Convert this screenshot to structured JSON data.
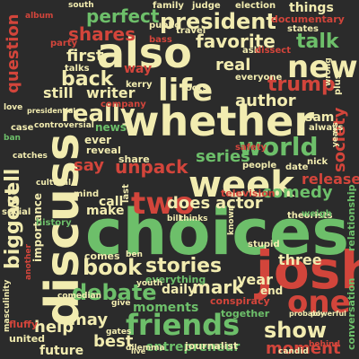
{
  "palette": {
    "background": "#2b2b2b",
    "cream": "#f2ecb0",
    "green": "#6dbf6a",
    "red": "#d2453b",
    "dark_green": "#2e8b57",
    "grey": "#9a9a9a"
  },
  "words": [
    {
      "text": "choices",
      "color": "#6dbf6a"
    },
    {
      "text": "whether",
      "color": "#f2ecb0"
    },
    {
      "text": "discuss",
      "color": "#f2ecb0"
    },
    {
      "text": "also",
      "color": "#f2ecb0"
    },
    {
      "text": "josh",
      "color": "#d2453b"
    },
    {
      "text": "week",
      "color": "#f2ecb0"
    },
    {
      "text": "friends",
      "color": "#6dbf6a"
    },
    {
      "text": "two",
      "color": "#d2453b"
    },
    {
      "text": "new",
      "color": "#f2ecb0"
    },
    {
      "text": "life",
      "color": "#f2ecb0"
    },
    {
      "text": "one",
      "color": "#d2453b"
    },
    {
      "text": "world",
      "color": "#6dbf6a"
    },
    {
      "text": "really",
      "color": "#f2ecb0"
    },
    {
      "text": "president",
      "color": "#f2ecb0"
    },
    {
      "text": "trump",
      "color": "#d2453b"
    },
    {
      "text": "debate",
      "color": "#6dbf6a"
    },
    {
      "text": "book",
      "color": "#f2ecb0"
    },
    {
      "text": "stories",
      "color": "#f2ecb0"
    },
    {
      "text": "show",
      "color": "#f2ecb0"
    },
    {
      "text": "perfect",
      "color": "#6dbf6a"
    },
    {
      "text": "shares",
      "color": "#d2453b"
    },
    {
      "text": "back",
      "color": "#f2ecb0"
    },
    {
      "text": "talk",
      "color": "#6dbf6a"
    },
    {
      "text": "favorite",
      "color": "#f2ecb0"
    },
    {
      "text": "first",
      "color": "#f2ecb0"
    },
    {
      "text": "unpack",
      "color": "#d2453b"
    },
    {
      "text": "series",
      "color": "#6dbf6a"
    },
    {
      "text": "biggest",
      "color": "#f2ecb0"
    },
    {
      "text": "well",
      "color": "#f2ecb0"
    },
    {
      "text": "mark",
      "color": "#f2ecb0"
    },
    {
      "text": "moment",
      "color": "#d2453b"
    },
    {
      "text": "society",
      "color": "#d2453b"
    },
    {
      "text": "comedy",
      "color": "#6dbf6a"
    },
    {
      "text": "question",
      "color": "#d2453b"
    },
    {
      "text": "author",
      "color": "#f2ecb0"
    },
    {
      "text": "real",
      "color": "#f2ecb0"
    },
    {
      "text": "does",
      "color": "#f2ecb0"
    },
    {
      "text": "actor",
      "color": "#f2ecb0"
    },
    {
      "text": "say",
      "color": "#d2453b"
    },
    {
      "text": "best",
      "color": "#f2ecb0"
    },
    {
      "text": "help",
      "color": "#f2ecb0"
    },
    {
      "text": "may",
      "color": "#f2ecb0"
    },
    {
      "text": "year",
      "color": "#f2ecb0"
    },
    {
      "text": "three",
      "color": "#f2ecb0"
    },
    {
      "text": "moments",
      "color": "#6dbf6a"
    },
    {
      "text": "daily",
      "color": "#f2ecb0"
    },
    {
      "text": "entrepreneur",
      "color": "#6dbf6a"
    },
    {
      "text": "release",
      "color": "#d2453b"
    },
    {
      "text": "writer",
      "color": "#f2ecb0"
    },
    {
      "text": "still",
      "color": "#f2ecb0"
    },
    {
      "text": "make",
      "color": "#f2ecb0"
    },
    {
      "text": "call",
      "color": "#f2ecb0"
    },
    {
      "text": "way",
      "color": "#d2453b"
    },
    {
      "text": "things",
      "color": "#f2ecb0"
    },
    {
      "text": "sam",
      "color": "#f2ecb0"
    },
    {
      "text": "future",
      "color": "#f2ecb0"
    },
    {
      "text": "importance",
      "color": "#f2ecb0"
    },
    {
      "text": "end",
      "color": "#f2ecb0"
    },
    {
      "text": "ever",
      "color": "#f2ecb0"
    },
    {
      "text": "news",
      "color": "#6dbf6a"
    },
    {
      "text": "documentary",
      "color": "#d2453b"
    },
    {
      "text": "conspiracy",
      "color": "#d2453b"
    },
    {
      "text": "television",
      "color": "#d2453b"
    },
    {
      "text": "journalist",
      "color": "#f2ecb0"
    },
    {
      "text": "conversation",
      "color": "#6dbf6a"
    },
    {
      "text": "relationship",
      "color": "#6dbf6a"
    },
    {
      "text": "together",
      "color": "#6dbf6a"
    },
    {
      "text": "reveal",
      "color": "#f2ecb0"
    },
    {
      "text": "share",
      "color": "#f2ecb0"
    },
    {
      "text": "comes",
      "color": "#f2ecb0"
    },
    {
      "text": "everything",
      "color": "#6dbf6a"
    },
    {
      "text": "united",
      "color": "#f2ecb0"
    },
    {
      "text": "fluffy",
      "color": "#d2453b"
    },
    {
      "text": "talks",
      "color": "#f2ecb0"
    },
    {
      "text": "party",
      "color": "#d2453b"
    },
    {
      "text": "plus",
      "color": "#f2ecb0"
    },
    {
      "text": "always",
      "color": "#f2ecb0"
    },
    {
      "text": "people",
      "color": "#f2ecb0"
    },
    {
      "text": "theorists",
      "color": "#f2ecb0"
    },
    {
      "text": "roots",
      "color": "#f2ecb0"
    },
    {
      "text": "company",
      "color": "#d2453b"
    },
    {
      "text": "election",
      "color": "#f2ecb0"
    },
    {
      "text": "family",
      "color": "#f2ecb0"
    },
    {
      "text": "judge",
      "color": "#f2ecb0"
    },
    {
      "text": "states",
      "color": "#f2ecb0"
    },
    {
      "text": "ask",
      "color": "#f2ecb0"
    },
    {
      "text": "bass",
      "color": "#d2453b"
    },
    {
      "text": "public",
      "color": "#f2ecb0"
    },
    {
      "text": "travel",
      "color": "#f2ecb0"
    },
    {
      "text": "everyone",
      "color": "#f2ecb0"
    },
    {
      "text": "dissect",
      "color": "#d2453b"
    },
    {
      "text": "kerry",
      "color": "#f2ecb0"
    },
    {
      "text": "safety",
      "color": "#d2453b"
    },
    {
      "text": "nick",
      "color": "#f2ecb0"
    },
    {
      "text": "date",
      "color": "#f2ecb0"
    },
    {
      "text": "weigh",
      "color": "#6dbf6a"
    },
    {
      "text": "stupid",
      "color": "#f2ecb0"
    },
    {
      "text": "mind",
      "color": "#f2ecb0"
    },
    {
      "text": "last",
      "color": "#f2ecb0"
    },
    {
      "text": "case",
      "color": "#f2ecb0"
    },
    {
      "text": "controversial",
      "color": "#f2ecb0"
    },
    {
      "text": "social",
      "color": "#f2ecb0"
    },
    {
      "text": "history",
      "color": "#6dbf6a"
    },
    {
      "text": "cultural",
      "color": "#f2ecb0"
    },
    {
      "text": "catches",
      "color": "#f2ecb0"
    },
    {
      "text": "masculinity",
      "color": "#f2ecb0"
    },
    {
      "text": "comedian",
      "color": "#f2ecb0"
    },
    {
      "text": "youth",
      "color": "#f2ecb0"
    },
    {
      "text": "candid",
      "color": "#f2ecb0"
    },
    {
      "text": "behind",
      "color": "#d2453b"
    },
    {
      "text": "probably",
      "color": "#f2ecb0"
    },
    {
      "text": "powerful",
      "color": "#f2ecb0"
    },
    {
      "text": "dilemma",
      "color": "#f2ecb0"
    },
    {
      "text": "gates",
      "color": "#f2ecb0"
    },
    {
      "text": "give",
      "color": "#f2ecb0"
    },
    {
      "text": "ben",
      "color": "#f2ecb0"
    },
    {
      "text": "live",
      "color": "#f2ecb0"
    },
    {
      "text": "bill",
      "color": "#f2ecb0"
    },
    {
      "text": "thinks",
      "color": "#f2ecb0"
    },
    {
      "text": "south",
      "color": "#f2ecb0"
    },
    {
      "text": "album",
      "color": "#d2453b"
    },
    {
      "text": "love",
      "color": "#f2ecb0"
    },
    {
      "text": "presidential",
      "color": "#f2ecb0"
    },
    {
      "text": "wrong",
      "color": "#f2ecb0"
    },
    {
      "text": "years",
      "color": "#f2ecb0"
    },
    {
      "text": "another",
      "color": "#d2453b"
    },
    {
      "text": "known",
      "color": "#f2ecb0"
    },
    {
      "text": "ban",
      "color": "#6dbf6a"
    }
  ]
}
